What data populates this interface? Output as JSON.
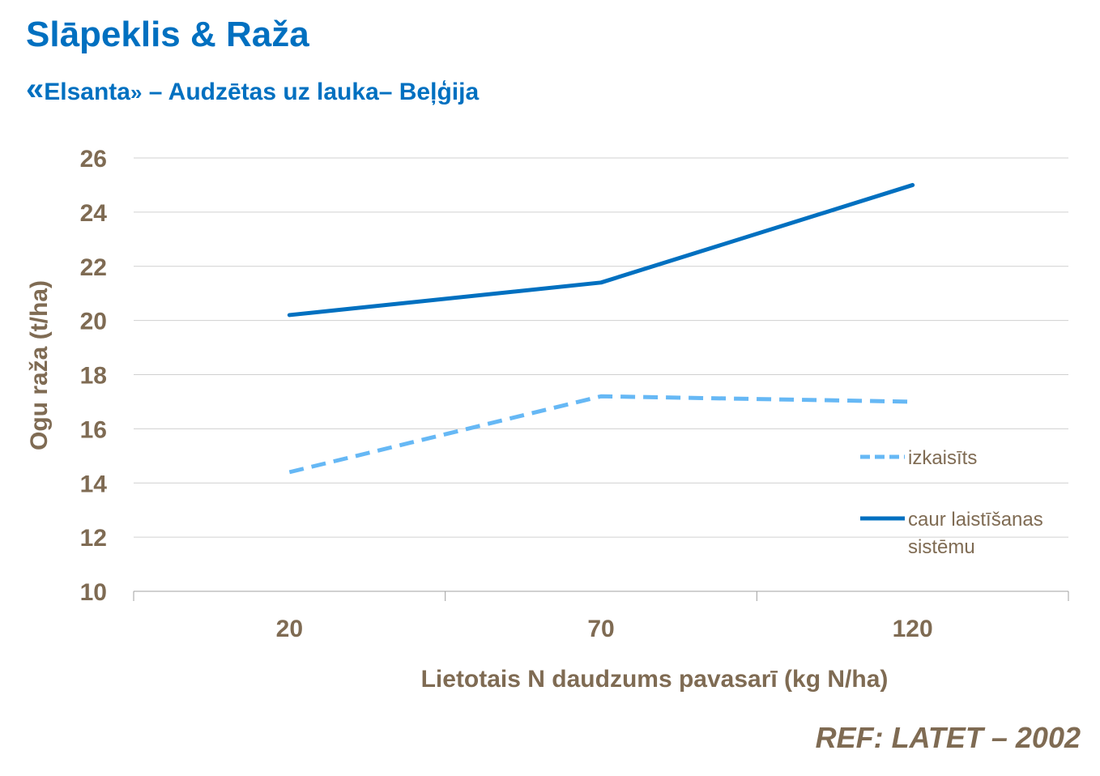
{
  "header": {
    "title": "Slāpeklis & Raža",
    "subtitle_open": "«",
    "subtitle_variety": "Elsanta",
    "subtitle_close": "»",
    "subtitle_rest": " – Audzētas uz lauka– Beļģija"
  },
  "reference": "REF:  LATET – 2002",
  "colors": {
    "accent": "#0070c0",
    "series_broadcast": "#66b8f5",
    "series_fertigation": "#0070c0",
    "axis_text": "#7f6b53",
    "gridline": "#d0d0d0"
  },
  "chart_data": {
    "type": "line",
    "title": "",
    "xlabel": "Lietotais N daudzums pavasarī (kg N/ha)",
    "ylabel": "Ogu raža (t/ha)",
    "categories": [
      "20",
      "70",
      "120"
    ],
    "ylim": [
      10,
      26
    ],
    "yticks": [
      "10",
      "12",
      "14",
      "16",
      "18",
      "20",
      "22",
      "24",
      "26"
    ],
    "grid": true,
    "legend_position": "right",
    "series": [
      {
        "name": "izkaisīts",
        "style": "dashed",
        "values": [
          14.4,
          17.2,
          17.0
        ]
      },
      {
        "name": "caur laistīšanas sistēmu",
        "name_lines": [
          "caur laistīšanas",
          "sistēmu"
        ],
        "style": "solid",
        "values": [
          20.2,
          21.4,
          25.0
        ]
      }
    ]
  }
}
